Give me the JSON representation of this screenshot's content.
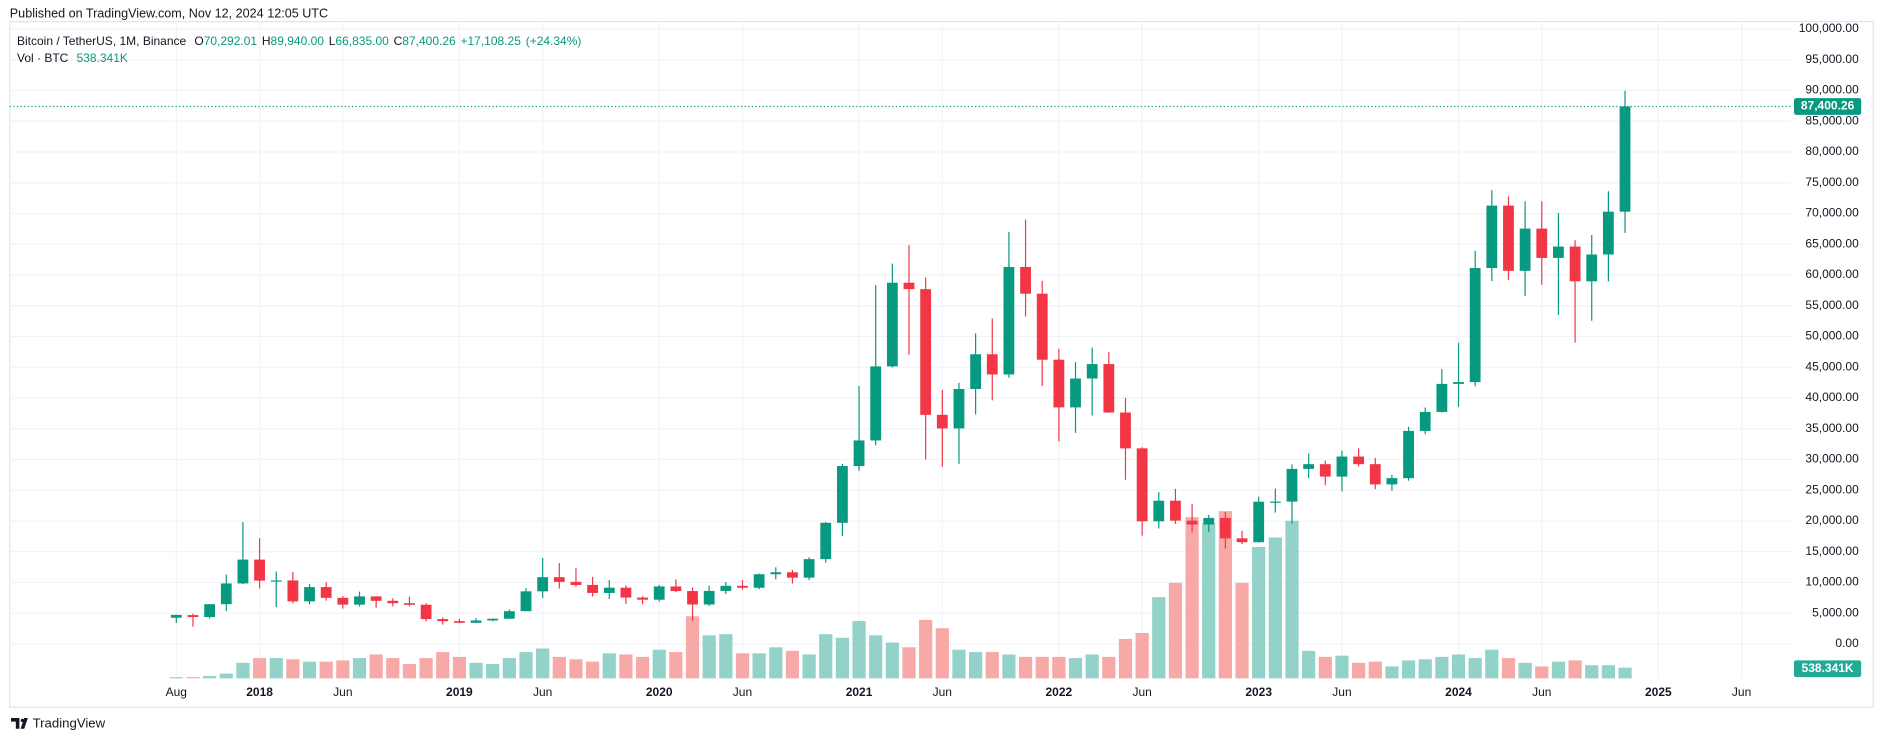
{
  "header": "Published on TradingView.com, Nov 12, 2024 12:05 UTC",
  "footer": "TradingView",
  "chart_data": {
    "type": "candlestick",
    "legend": {
      "symbol": "Bitcoin / TetherUS, 1M, Binance",
      "items": [
        {
          "key": "O",
          "value": 70292.01,
          "label": "70,292.01"
        },
        {
          "key": "H",
          "value": 89940,
          "label": "89,940.00"
        },
        {
          "key": "L",
          "value": 66835,
          "label": "66,835.00"
        },
        {
          "key": "C",
          "value": 87400.26,
          "label": "87,400.26"
        },
        {
          "value": 17108.25,
          "label": "+17,108.25"
        },
        {
          "value": 24.34,
          "label": "(+24.34%)"
        }
      ],
      "volume_name": "Vol · BTC",
      "volume": {
        "value": 538341,
        "label": "538.341K"
      }
    },
    "x": [
      "2017-08",
      "2017-09",
      "2017-10",
      "2017-11",
      "2017-12",
      "2018-01",
      "2018-02",
      "2018-03",
      "2018-04",
      "2018-05",
      "2018-06",
      "2018-07",
      "2018-08",
      "2018-09",
      "2018-10",
      "2018-11",
      "2018-12",
      "2019-01",
      "2019-02",
      "2019-03",
      "2019-04",
      "2019-05",
      "2019-06",
      "2019-07",
      "2019-08",
      "2019-09",
      "2019-10",
      "2019-11",
      "2019-12",
      "2020-01",
      "2020-02",
      "2020-03",
      "2020-04",
      "2020-05",
      "2020-06",
      "2020-07",
      "2020-08",
      "2020-09",
      "2020-10",
      "2020-11",
      "2020-12",
      "2021-01",
      "2021-02",
      "2021-03",
      "2021-04",
      "2021-05",
      "2021-06",
      "2021-07",
      "2021-08",
      "2021-09",
      "2021-10",
      "2021-11",
      "2021-12",
      "2022-01",
      "2022-02",
      "2022-03",
      "2022-04",
      "2022-05",
      "2022-06",
      "2022-07",
      "2022-08",
      "2022-09",
      "2022-10",
      "2022-11",
      "2022-12",
      "2023-01",
      "2023-02",
      "2023-03",
      "2023-04",
      "2023-05",
      "2023-06",
      "2023-07",
      "2023-08",
      "2023-09",
      "2023-10",
      "2023-11",
      "2023-12",
      "2024-01",
      "2024-02",
      "2024-03",
      "2024-04",
      "2024-05",
      "2024-06",
      "2024-07",
      "2024-08",
      "2024-09",
      "2024-10",
      "2024-11"
    ],
    "open": [
      4261,
      4689,
      4378,
      6463,
      9838,
      13716,
      10285,
      10326,
      6923,
      9246,
      7494,
      6391,
      7730,
      7011,
      6626,
      6371,
      4041,
      3702,
      3434,
      3816,
      4103,
      5320,
      8555,
      10855,
      10085,
      9588,
      8289,
      9140,
      7541,
      7195,
      9351,
      8599,
      6410,
      8620,
      9448,
      9138,
      11335,
      11650,
      10777,
      13791,
      19695,
      28923,
      33092,
      45135,
      58740,
      57694,
      37254,
      35045,
      41461,
      47100,
      43820,
      61300,
      56950,
      46216,
      38466,
      43160,
      45510,
      37630,
      31801,
      19942,
      23296,
      20048,
      19423,
      20490,
      17165,
      16542,
      23125,
      23141,
      28465,
      29233,
      27210,
      30472,
      29232,
      25941,
      26962,
      34640,
      37724,
      42284,
      42580,
      61131,
      71280,
      60672,
      67541,
      62773,
      64628,
      58974,
      63327,
      70292.01
    ],
    "high": [
      4745,
      4939,
      6470,
      11300,
      19798,
      17176,
      11786,
      11708,
      9759,
      10020,
      7786,
      8507,
      7750,
      7410,
      7680,
      6615,
      4313,
      4069,
      4198,
      4140,
      5600,
      9074,
      13970,
      13147,
      12325,
      10905,
      10370,
      9513,
      7750,
      9578,
      10500,
      9189,
      9460,
      10068,
      10380,
      11444,
      12468,
      12050,
      14100,
      19863,
      29300,
      41950,
      58352,
      61844,
      64854,
      59592,
      41330,
      42448,
      50500,
      52920,
      67000,
      69000,
      59053,
      47990,
      45821,
      48189,
      47444,
      40023,
      31986,
      24668,
      25211,
      22799,
      20988,
      21480,
      18387,
      23960,
      25250,
      29184,
      31000,
      29820,
      31431,
      31804,
      30244,
      27483,
      35280,
      38450,
      44700,
      48970,
      63913,
      73777,
      72797,
      71979,
      71980,
      70080,
      65660,
      66498,
      73620,
      89940
    ],
    "low": [
      3400,
      2817,
      4110,
      5325,
      9722,
      9035,
      5968,
      6600,
      6430,
      7032,
      5750,
      6070,
      5880,
      6111,
      6100,
      3652,
      3156,
      3349,
      3373,
      3672,
      4067,
      5351,
      7444,
      9010,
      9320,
      7710,
      7300,
      6515,
      6435,
      6871,
      8450,
      3782,
      6150,
      8107,
      8833,
      8893,
      10500,
      9826,
      10375,
      13195,
      17550,
      28130,
      32296,
      44950,
      47044,
      30000,
      28805,
      29278,
      37332,
      39600,
      43283,
      53256,
      41967,
      32917,
      34322,
      37155,
      37578,
      26700,
      17622,
      18782,
      19520,
      18125,
      18190,
      15476,
      16256,
      16499,
      21351,
      19549,
      26942,
      25811,
      24800,
      28861,
      25166,
      24901,
      26538,
      34097,
      37615,
      38555,
      41884,
      59005,
      59191,
      56552,
      58402,
      53485,
      49000,
      52550,
      58946,
      66835
    ],
    "close": [
      4724,
      4378,
      6463,
      9838,
      13716,
      10285,
      10326,
      6923,
      9246,
      7494,
      6391,
      7730,
      7011,
      6626,
      6371,
      4041,
      3702,
      3434,
      3816,
      4103,
      5320,
      8555,
      10855,
      10085,
      9588,
      8289,
      9140,
      7541,
      7195,
      9351,
      8599,
      6410,
      8620,
      9448,
      9138,
      11335,
      11650,
      10777,
      13791,
      19695,
      28923,
      33092,
      45135,
      58740,
      57694,
      37253,
      35045,
      41461,
      47100,
      43824,
      61300,
      56950,
      46216,
      38466,
      43160,
      45510,
      37630,
      31801,
      19942,
      23293,
      20050,
      19423,
      20490,
      17164,
      16542,
      23125,
      23141,
      28465,
      29233,
      27210,
      30472,
      29232,
      25941,
      26962,
      34639,
      37723,
      42283,
      42580,
      61130,
      71280,
      60672,
      67540,
      62772,
      64628,
      58974,
      63327,
      70292,
      87400.26
    ],
    "volume": [
      60000,
      60000,
      120000,
      240000,
      780000,
      1020000,
      1020000,
      960000,
      840000,
      840000,
      900000,
      1020000,
      1200000,
      1020000,
      720000,
      1020000,
      1320000,
      1080000,
      780000,
      720000,
      1020000,
      1320000,
      1500000,
      1080000,
      960000,
      840000,
      1260000,
      1200000,
      1080000,
      1440000,
      1320000,
      3120000,
      2160000,
      2220000,
      1260000,
      1260000,
      1560000,
      1380000,
      1200000,
      2220000,
      2040000,
      2880000,
      2160000,
      1800000,
      1560000,
      2940000,
      2520000,
      1440000,
      1320000,
      1320000,
      1200000,
      1080000,
      1080000,
      1080000,
      1020000,
      1200000,
      1080000,
      1980000,
      2280000,
      4080000,
      4800000,
      8100000,
      7800000,
      8400000,
      4800000,
      6600000,
      7080000,
      7920000,
      1380000,
      1080000,
      1140000,
      780000,
      840000,
      600000,
      900000,
      960000,
      1080000,
      1200000,
      1020000,
      1440000,
      1020000,
      780000,
      600000,
      840000,
      900000,
      660000,
      660000,
      538341
    ],
    "up_color": "#089981",
    "down_color": "#f23645",
    "volume_up_color": "#92d2c8",
    "volume_down_color": "#f7a9a7",
    "xlim": [
      "2016-10",
      "2025-09"
    ],
    "xticks": [
      {
        "value": "2017-08",
        "label": "Aug"
      },
      {
        "value": "2018-01",
        "label": "2018"
      },
      {
        "value": "2018-06",
        "label": "Jun"
      },
      {
        "value": "2019-01",
        "label": "2019"
      },
      {
        "value": "2019-06",
        "label": "Jun"
      },
      {
        "value": "2020-01",
        "label": "2020"
      },
      {
        "value": "2020-06",
        "label": "Jun"
      },
      {
        "value": "2021-01",
        "label": "2021"
      },
      {
        "value": "2021-06",
        "label": "Jun"
      },
      {
        "value": "2022-01",
        "label": "2022"
      },
      {
        "value": "2022-06",
        "label": "Jun"
      },
      {
        "value": "2023-01",
        "label": "2023"
      },
      {
        "value": "2023-06",
        "label": "Jun"
      },
      {
        "value": "2024-01",
        "label": "2024"
      },
      {
        "value": "2024-06",
        "label": "Jun"
      },
      {
        "value": "2025-01",
        "label": "2025"
      },
      {
        "value": "2025-06",
        "label": "Jun"
      }
    ],
    "ylim": [
      -5600,
      101200
    ],
    "yticks": [
      {
        "value": 0,
        "label": "0.00"
      },
      {
        "value": 5000,
        "label": "5,000.00"
      },
      {
        "value": 10000,
        "label": "10,000.00"
      },
      {
        "value": 15000,
        "label": "15,000.00"
      },
      {
        "value": 20000,
        "label": "20,000.00"
      },
      {
        "value": 25000,
        "label": "25,000.00"
      },
      {
        "value": 30000,
        "label": "30,000.00"
      },
      {
        "value": 35000,
        "label": "35,000.00"
      },
      {
        "value": 40000,
        "label": "40,000.00"
      },
      {
        "value": 45000,
        "label": "45,000.00"
      },
      {
        "value": 50000,
        "label": "50,000.00"
      },
      {
        "value": 55000,
        "label": "55,000.00"
      },
      {
        "value": 60000,
        "label": "60,000.00"
      },
      {
        "value": 65000,
        "label": "65,000.00"
      },
      {
        "value": 70000,
        "label": "70,000.00"
      },
      {
        "value": 75000,
        "label": "75,000.00"
      },
      {
        "value": 80000,
        "label": "80,000.00"
      },
      {
        "value": 85000,
        "label": "85,000.00"
      },
      {
        "value": 90000,
        "label": "90,000.00"
      },
      {
        "value": 95000,
        "label": "95,000.00"
      },
      {
        "value": 100000,
        "label": "100,000.00"
      }
    ],
    "volume_ylim": [
      0,
      33000000
    ],
    "last_price": {
      "value": 87400.26,
      "label": "87,400.26"
    },
    "last_volume": {
      "value": 538341,
      "label": "538.341K"
    },
    "grid": true
  }
}
